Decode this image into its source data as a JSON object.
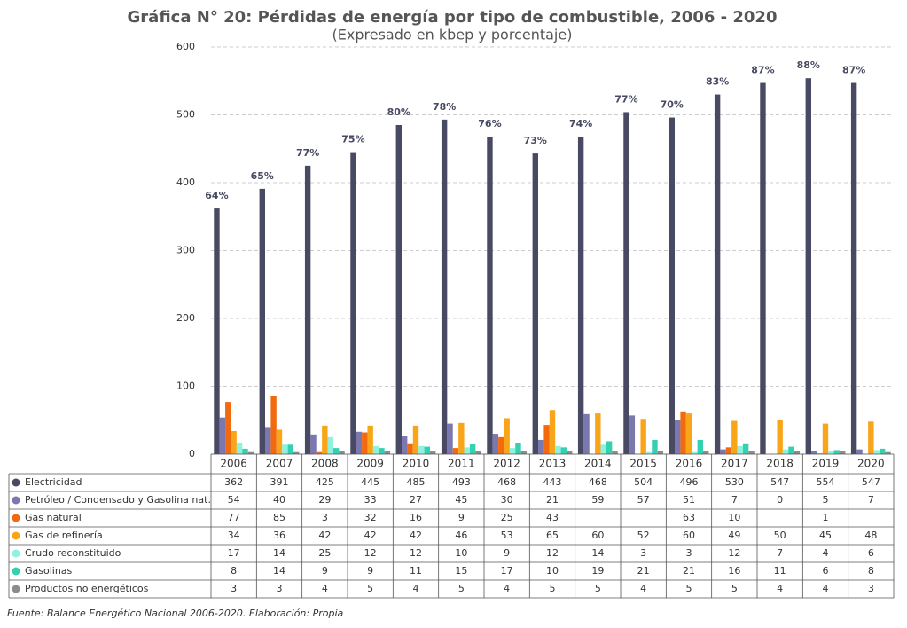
{
  "chart_data": {
    "type": "bar",
    "title": "Gráfica N° 20: Pérdidas de energía por tipo de combustible, 2006 - 2020",
    "subtitle": "(Expresado en kbep y porcentaje)",
    "source": "Fuente: Balance Energético Nacional 2006-2020. Elaboración: Propia",
    "categories": [
      "2006",
      "2007",
      "2008",
      "2009",
      "2010",
      "2011",
      "2012",
      "2013",
      "2014",
      "2015",
      "2016",
      "2017",
      "2018",
      "2019",
      "2020"
    ],
    "percent_labels": [
      "64%",
      "65%",
      "77%",
      "75%",
      "80%",
      "78%",
      "76%",
      "73%",
      "74%",
      "77%",
      "70%",
      "83%",
      "87%",
      "88%",
      "87%"
    ],
    "series": [
      {
        "name": "Electricidad",
        "color": "#474a62",
        "values": [
          362,
          391,
          425,
          445,
          485,
          493,
          468,
          443,
          468,
          504,
          496,
          530,
          547,
          554,
          547
        ]
      },
      {
        "name": "Petróleo / Condensado y Gasolina nat.",
        "color": "#7b78b0",
        "values": [
          54,
          40,
          29,
          33,
          27,
          45,
          30,
          21,
          59,
          57,
          51,
          7,
          0,
          5,
          7
        ]
      },
      {
        "name": "Gas natural",
        "color": "#f26a0f",
        "values": [
          77,
          85,
          3,
          32,
          16,
          9,
          25,
          43,
          null,
          null,
          63,
          10,
          null,
          1,
          null
        ]
      },
      {
        "name": "Gas de refinería",
        "color": "#f9a51a",
        "values": [
          34,
          36,
          42,
          42,
          42,
          46,
          53,
          65,
          60,
          52,
          60,
          49,
          50,
          45,
          48
        ]
      },
      {
        "name": "Crudo reconstituido",
        "color": "#8ef2e0",
        "values": [
          17,
          14,
          25,
          12,
          12,
          10,
          9,
          12,
          14,
          3,
          3,
          12,
          7,
          4,
          6
        ]
      },
      {
        "name": "Gasolinas",
        "color": "#35d0b0",
        "values": [
          8,
          14,
          9,
          9,
          11,
          15,
          17,
          10,
          19,
          21,
          21,
          16,
          11,
          6,
          8
        ]
      },
      {
        "name": "Productos no energéticos",
        "color": "#8c8c8c",
        "values": [
          3,
          3,
          4,
          5,
          4,
          5,
          4,
          5,
          5,
          4,
          5,
          5,
          4,
          4,
          3
        ]
      }
    ],
    "ylim": [
      0,
      600
    ],
    "yticks": [
      0,
      100,
      200,
      300,
      400,
      500,
      600
    ],
    "grid": true
  }
}
